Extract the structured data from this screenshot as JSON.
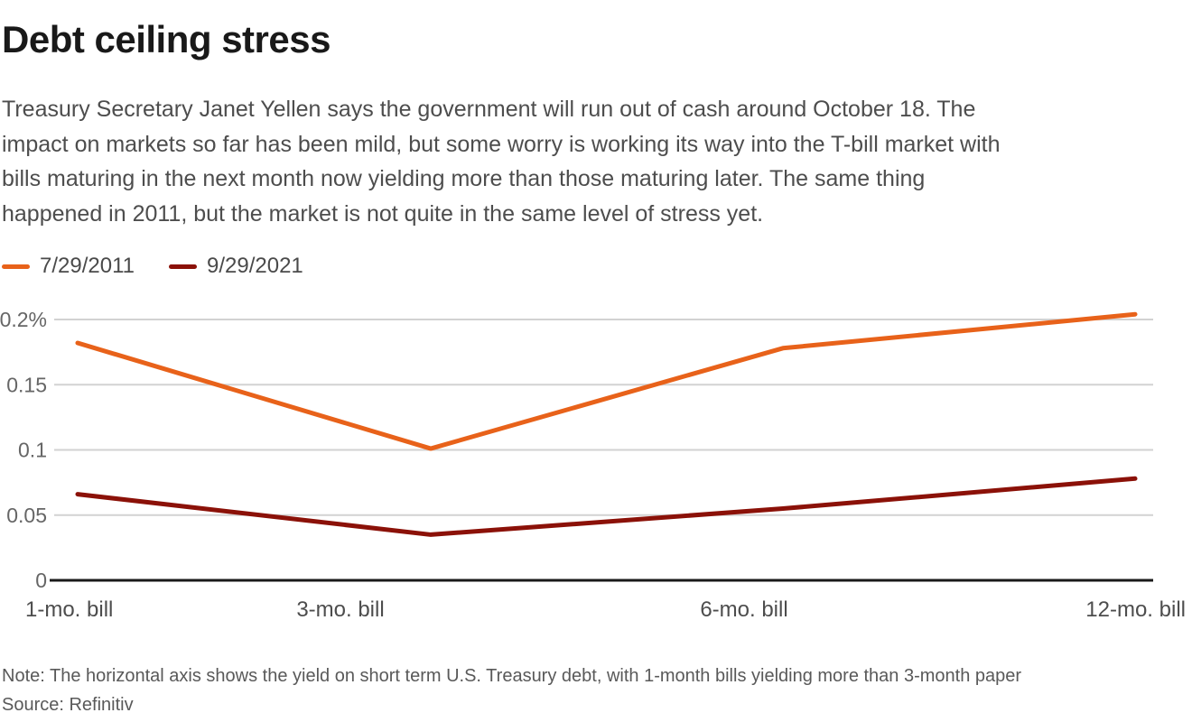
{
  "header": {
    "title": "Debt ceiling stress",
    "description_lines": [
      "Treasury Secretary Janet Yellen says the government will run out of cash around October 18. The",
      "impact on markets so far has been mild, but some worry is working its way into the T-bill market with",
      "bills maturing in the next month now yielding more than those maturing later. The same thing",
      "happened in 2011, but the market is not quite in the same level of stress yet."
    ]
  },
  "chart_data": {
    "type": "line",
    "title": "Debt ceiling stress",
    "xlabel": "",
    "ylabel": "",
    "categories": [
      "1-mo. bill",
      "3-mo. bill",
      "6-mo. bill",
      "12-mo. bill"
    ],
    "series": [
      {
        "name": "7/29/2011",
        "color": "#e8621a",
        "values": [
          0.182,
          0.101,
          0.178,
          0.204
        ]
      },
      {
        "name": "9/29/2021",
        "color": "#8b1108",
        "values": [
          0.066,
          0.035,
          0.055,
          0.078
        ]
      }
    ],
    "yticks": [
      {
        "value": 0,
        "label": "0"
      },
      {
        "value": 0.05,
        "label": "0.05"
      },
      {
        "value": 0.1,
        "label": "0.1"
      },
      {
        "value": 0.15,
        "label": "0.15"
      },
      {
        "value": 0.2,
        "label": "0.2%"
      }
    ],
    "ylim": [
      0,
      0.21
    ],
    "grid": true,
    "legend_position": "top-left",
    "unit": "percent"
  },
  "footer": {
    "note": "Note: The horizontal axis shows the yield on short term U.S. Treasury debt, with 1-month bills yielding more than 3-month paper",
    "source": "Source: Refinitiv"
  },
  "colors": {
    "axis": "#1a1a1a",
    "gridline": "#d2d2d2",
    "tick_label": "#666666",
    "text": "#4d4d4d"
  }
}
